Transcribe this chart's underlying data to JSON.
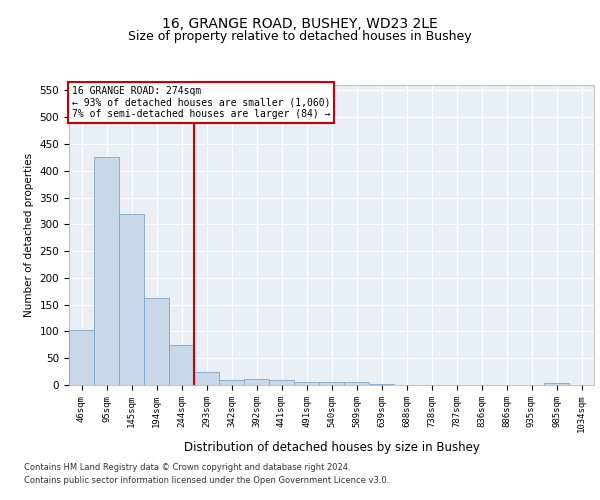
{
  "title1": "16, GRANGE ROAD, BUSHEY, WD23 2LE",
  "title2": "Size of property relative to detached houses in Bushey",
  "xlabel": "Distribution of detached houses by size in Bushey",
  "ylabel": "Number of detached properties",
  "categories": [
    "46sqm",
    "95sqm",
    "145sqm",
    "194sqm",
    "244sqm",
    "293sqm",
    "342sqm",
    "392sqm",
    "441sqm",
    "491sqm",
    "540sqm",
    "589sqm",
    "639sqm",
    "688sqm",
    "738sqm",
    "787sqm",
    "836sqm",
    "886sqm",
    "935sqm",
    "985sqm",
    "1034sqm"
  ],
  "values": [
    103,
    425,
    320,
    163,
    75,
    25,
    10,
    11,
    10,
    5,
    5,
    5,
    2,
    0,
    0,
    0,
    0,
    0,
    0,
    3,
    0
  ],
  "bar_color": "#c8d8e8",
  "bar_edge_color": "#7ca8cc",
  "vline_x": 4.5,
  "vline_color": "#cc0000",
  "annotation_line1": "16 GRANGE ROAD: 274sqm",
  "annotation_line2": "← 93% of detached houses are smaller (1,060)",
  "annotation_line3": "7% of semi-detached houses are larger (84) →",
  "ylim": [
    0,
    560
  ],
  "yticks": [
    0,
    50,
    100,
    150,
    200,
    250,
    300,
    350,
    400,
    450,
    500,
    550
  ],
  "background_color": "#eaeef5",
  "footer1": "Contains HM Land Registry data © Crown copyright and database right 2024.",
  "footer2": "Contains public sector information licensed under the Open Government Licence v3.0.",
  "title1_fontsize": 10,
  "title2_fontsize": 9,
  "bar_width": 1.0
}
